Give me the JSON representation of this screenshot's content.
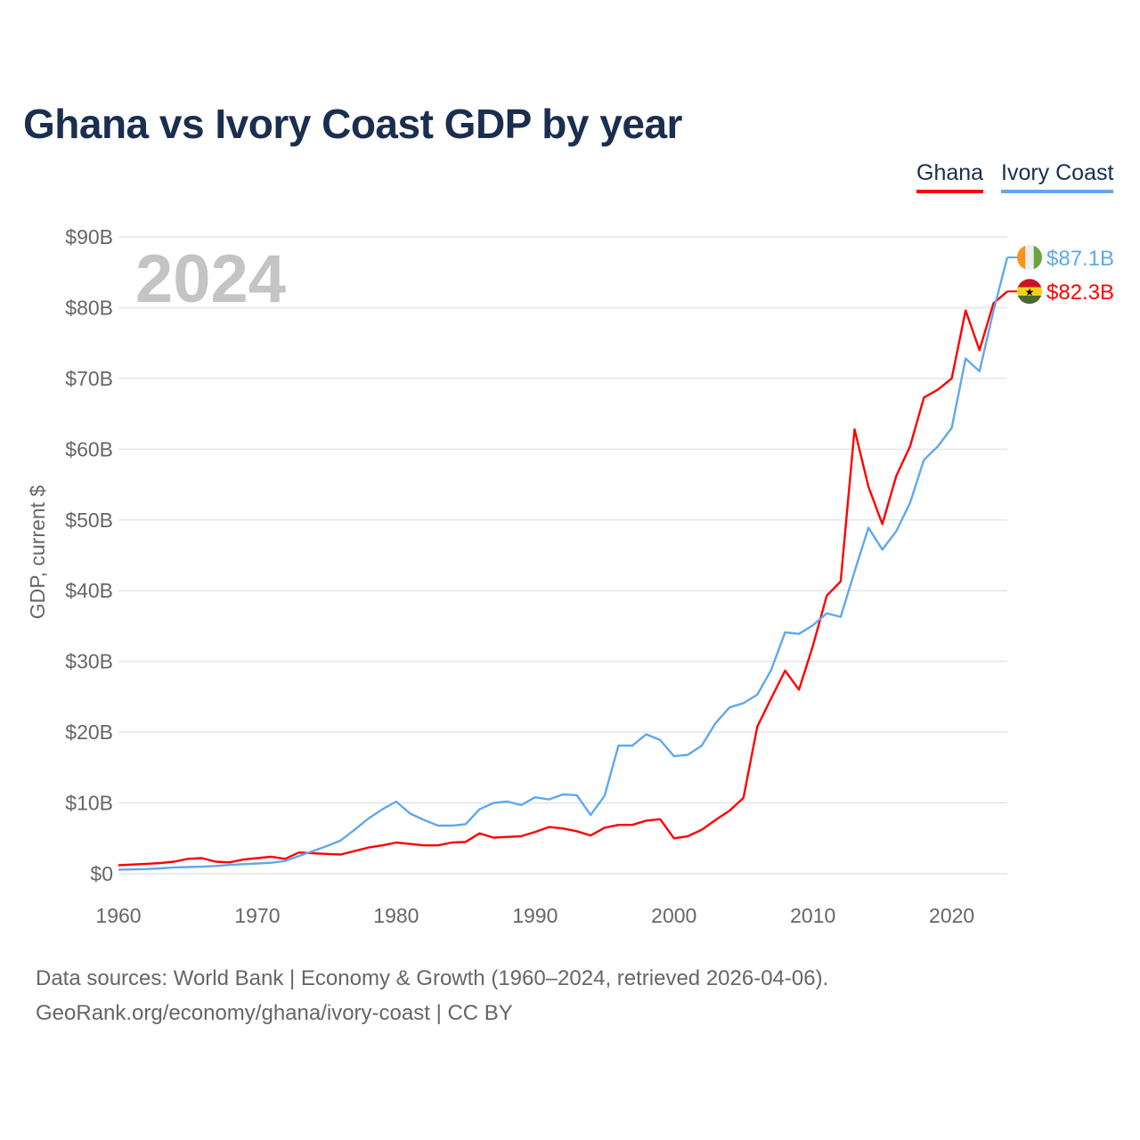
{
  "chart_data": {
    "type": "line",
    "title": "Ghana vs Ivory Coast GDP by year",
    "xlabel": "",
    "ylabel": "GDP, current $",
    "xlim": [
      1960,
      2024
    ],
    "ylim": [
      0,
      90
    ],
    "x_ticks": [
      1960,
      1970,
      1980,
      1990,
      2000,
      2010,
      2020
    ],
    "x_tick_labels": [
      "1960",
      "1970",
      "1980",
      "1990",
      "2000",
      "2010",
      "2020"
    ],
    "y_ticks": [
      0,
      10,
      20,
      30,
      40,
      50,
      60,
      70,
      80,
      90
    ],
    "y_tick_labels": [
      "$0",
      "$10B",
      "$20B",
      "$30B",
      "$40B",
      "$50B",
      "$60B",
      "$70B",
      "$80B",
      "$90B"
    ],
    "grid": true,
    "legend_position": "top-right",
    "year_watermark": "2024",
    "x_start": 1960,
    "series": [
      {
        "name": "Ghana",
        "color": "#ff0000",
        "end_label": "$82.3B",
        "flag": "ghana-flag",
        "values": [
          1.2,
          1.3,
          1.4,
          1.5,
          1.7,
          2.1,
          2.2,
          1.7,
          1.6,
          2.0,
          2.2,
          2.4,
          2.1,
          3.0,
          2.9,
          2.8,
          2.7,
          3.2,
          3.7,
          4.0,
          4.4,
          4.2,
          4.0,
          4.0,
          4.4,
          4.5,
          5.7,
          5.1,
          5.2,
          5.3,
          5.9,
          6.6,
          6.4,
          6.0,
          5.4,
          6.5,
          6.9,
          6.9,
          7.5,
          7.7,
          5.0,
          5.3,
          6.2,
          7.6,
          8.9,
          10.7,
          20.8,
          24.8,
          28.7,
          26.0,
          32.2,
          39.3,
          41.3,
          62.8,
          54.7,
          49.4,
          56.2,
          60.4,
          67.3,
          68.4,
          70.0,
          79.6,
          74.0,
          80.6,
          82.3
        ]
      },
      {
        "name": "Ivory Coast",
        "color": "#5fa8ee",
        "end_label": "$87.1B",
        "flag": "ivory-coast-flag",
        "values": [
          0.55,
          0.6,
          0.65,
          0.75,
          0.9,
          0.95,
          1.0,
          1.1,
          1.25,
          1.35,
          1.45,
          1.55,
          1.8,
          2.5,
          3.2,
          3.9,
          4.7,
          6.2,
          7.8,
          9.1,
          10.2,
          8.5,
          7.6,
          6.8,
          6.8,
          7.0,
          9.1,
          10.0,
          10.2,
          9.7,
          10.8,
          10.5,
          11.2,
          11.1,
          8.3,
          11.0,
          18.1,
          18.1,
          19.7,
          18.9,
          16.6,
          16.8,
          18.1,
          21.3,
          23.5,
          24.1,
          25.3,
          28.8,
          34.1,
          33.9,
          35.1,
          36.8,
          36.3,
          42.7,
          48.9,
          45.8,
          48.4,
          52.4,
          58.5,
          60.4,
          63.0,
          72.8,
          71.0,
          79.5,
          87.1
        ]
      }
    ]
  },
  "footer": {
    "line1": "Data sources: World Bank | Economy & Growth (1960–2024, retrieved 2026-04-06).",
    "line2": "GeoRank.org/economy/ghana/ivory-coast | CC BY"
  }
}
